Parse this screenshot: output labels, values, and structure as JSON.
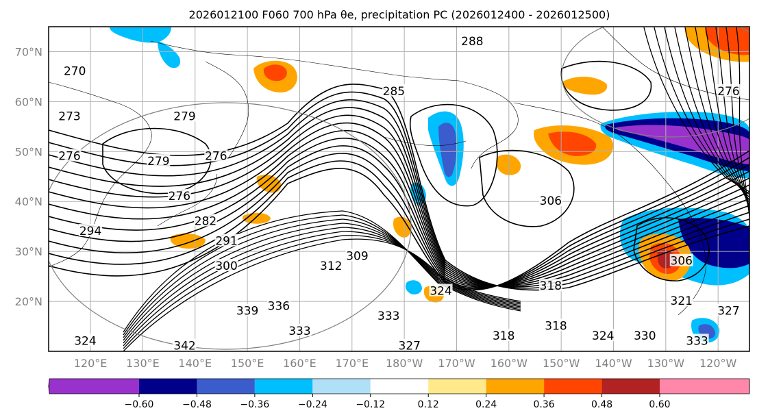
{
  "title": "2026012100 F060 700 hPa θe, precipitation PC (2026012400 - 2026012500)",
  "map": {
    "lat_labels": [
      "70°N",
      "60°N",
      "50°N",
      "40°N",
      "30°N",
      "20°N"
    ],
    "lon_labels": [
      "120°E",
      "130°E",
      "140°E",
      "150°E",
      "160°E",
      "170°E",
      "180°W",
      "170°W",
      "160°W",
      "150°W",
      "140°W",
      "130°W",
      "120°W"
    ],
    "label_color": "#808080"
  },
  "contour_labels": [
    {
      "text": "270",
      "lon": 117,
      "lat": 66
    },
    {
      "text": "273",
      "lon": 116,
      "lat": 57
    },
    {
      "text": "276",
      "lon": 116,
      "lat": 49
    },
    {
      "text": "279",
      "lon": 138,
      "lat": 57
    },
    {
      "text": "279",
      "lon": 133,
      "lat": 48
    },
    {
      "text": "276",
      "lon": 144,
      "lat": 49
    },
    {
      "text": "276",
      "lon": 137,
      "lat": 41
    },
    {
      "text": "282",
      "lon": 142,
      "lat": 36
    },
    {
      "text": "291",
      "lon": 146,
      "lat": 32
    },
    {
      "text": "294",
      "lon": 120,
      "lat": 34
    },
    {
      "text": "300",
      "lon": 146,
      "lat": 27
    },
    {
      "text": "309",
      "lon": 171,
      "lat": 29
    },
    {
      "text": "312",
      "lon": 166,
      "lat": 27
    },
    {
      "text": "285",
      "lon": 178,
      "lat": 62
    },
    {
      "text": "288",
      "lon": 193,
      "lat": 72
    },
    {
      "text": "339",
      "lon": 150,
      "lat": 18
    },
    {
      "text": "336",
      "lon": 156,
      "lat": 19
    },
    {
      "text": "333",
      "lon": 160,
      "lat": 14
    },
    {
      "text": "342",
      "lon": 138,
      "lat": 11
    },
    {
      "text": "324",
      "lon": 119,
      "lat": 12
    },
    {
      "text": "333",
      "lon": 177,
      "lat": 17
    },
    {
      "text": "327",
      "lon": 181,
      "lat": 11
    },
    {
      "text": "324",
      "lon": 187,
      "lat": 22
    },
    {
      "text": "306",
      "lon": 208,
      "lat": 40
    },
    {
      "text": "318",
      "lon": 208,
      "lat": 23
    },
    {
      "text": "318",
      "lon": 199,
      "lat": 13
    },
    {
      "text": "318",
      "lon": 209,
      "lat": 15
    },
    {
      "text": "324",
      "lon": 218,
      "lat": 13
    },
    {
      "text": "330",
      "lon": 226,
      "lat": 13
    },
    {
      "text": "333",
      "lon": 236,
      "lat": 12
    },
    {
      "text": "321",
      "lon": 233,
      "lat": 20
    },
    {
      "text": "327",
      "lon": 242,
      "lat": 18
    },
    {
      "text": "306",
      "lon": 233,
      "lat": 28
    },
    {
      "text": "276",
      "lon": 242,
      "lat": 62
    }
  ],
  "colorbar": {
    "tick_labels": [
      "−0.60",
      "−0.48",
      "−0.36",
      "−0.24",
      "−0.12",
      "0.12",
      "0.24",
      "0.36",
      "0.48",
      "0.60"
    ],
    "colors": [
      "#9932cc",
      "#00008b",
      "#3a5ccc",
      "#00bfff",
      "#b0e0f8",
      "#ffffff",
      "#ffe98a",
      "#ffa500",
      "#ff4500",
      "#b22222",
      "#ff88aa"
    ]
  }
}
